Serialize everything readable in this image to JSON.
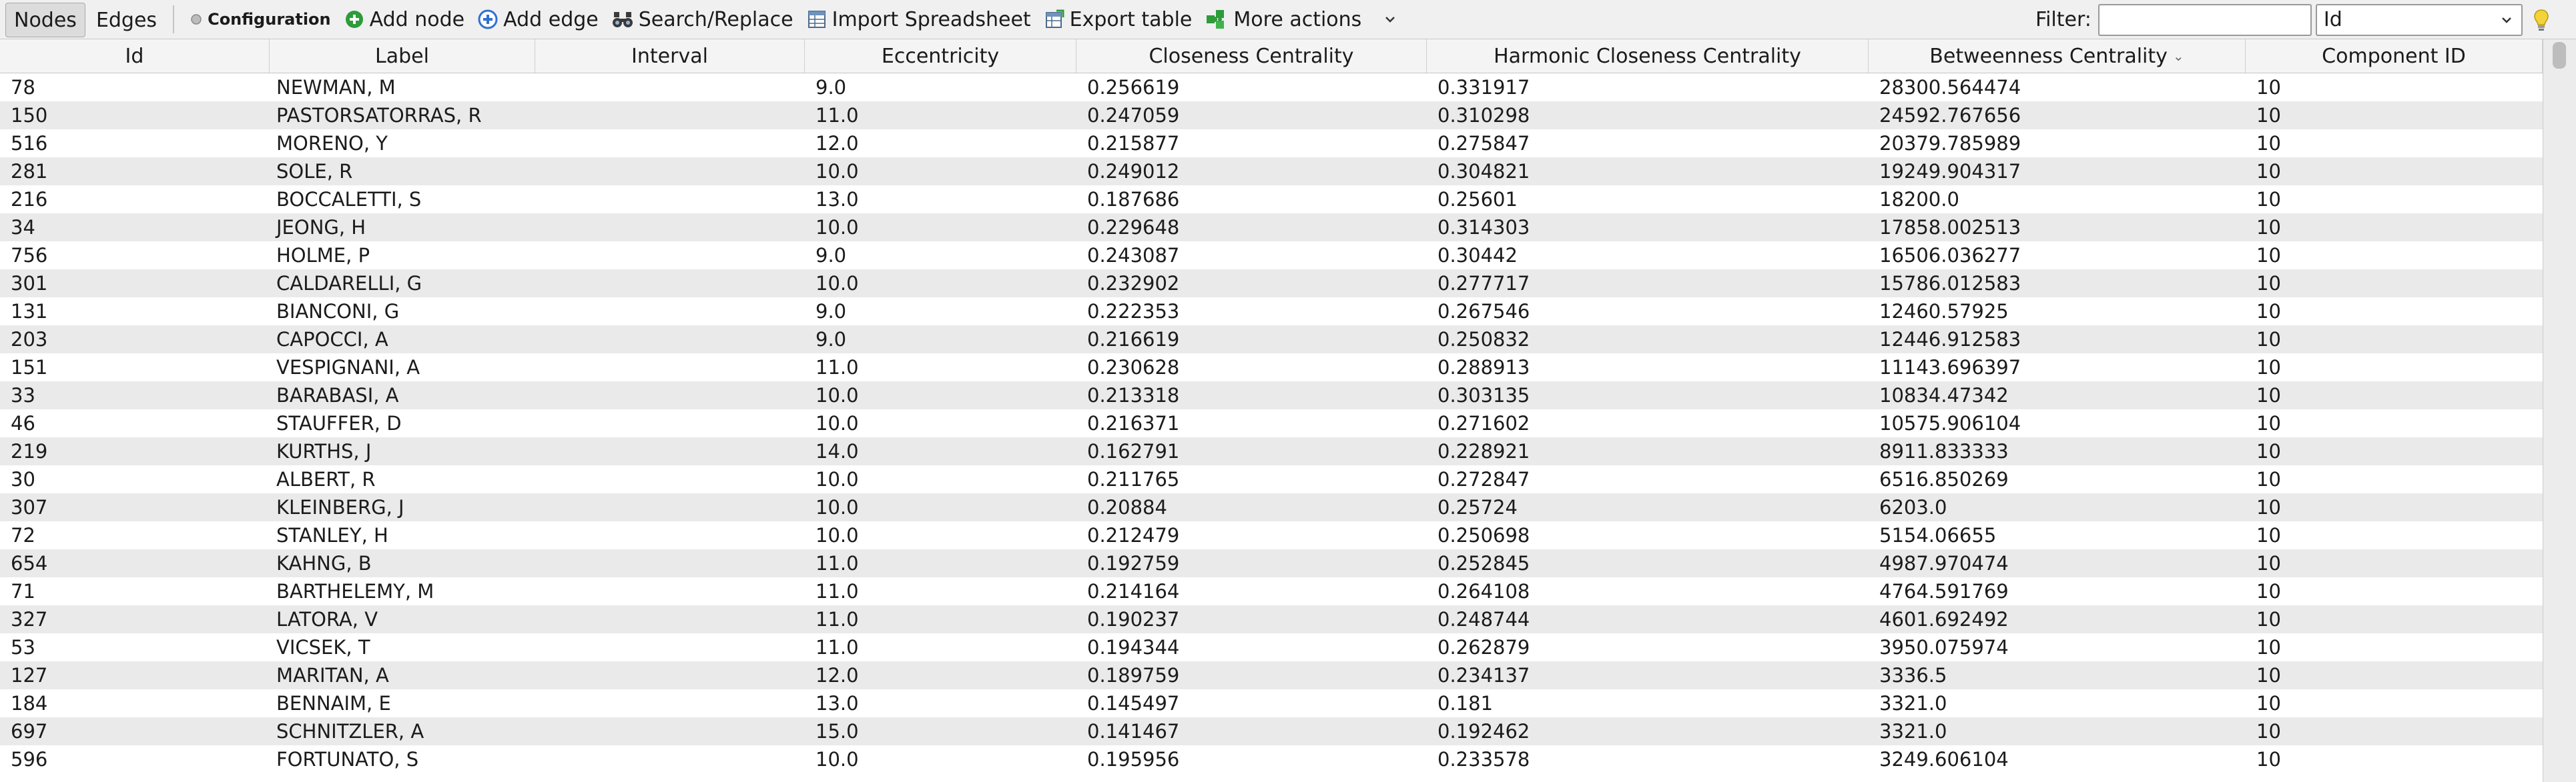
{
  "toolbar": {
    "tabs": [
      {
        "label": "Nodes",
        "active": true
      },
      {
        "label": "Edges",
        "active": false
      }
    ],
    "configuration_label": "Configuration",
    "add_node_label": "Add node",
    "add_edge_label": "Add edge",
    "search_replace_label": "Search/Replace",
    "import_spreadsheet_label": "Import Spreadsheet",
    "export_table_label": "Export table",
    "more_actions_label": "More actions",
    "filter_label": "Filter:",
    "filter_value": "",
    "filter_column": "Id"
  },
  "colors": {
    "accent_green": "#2e9b3a",
    "accent_blue": "#2f6fd6",
    "row_alt": "#eaeaea"
  },
  "icons": {
    "configuration": "dot-icon",
    "add_node": "plus-circle-green-icon",
    "add_edge": "plus-circle-blue-icon",
    "search_replace": "binoculars-icon",
    "import_spreadsheet": "spreadsheet-icon",
    "export_table": "export-table-icon",
    "more_actions": "puzzle-icon",
    "help": "lightbulb-icon"
  },
  "table": {
    "columns": [
      "Id",
      "Label",
      "Interval",
      "Eccentricity",
      "Closeness Centrality",
      "Harmonic Closeness Centrality",
      "Betweenness Centrality",
      "Component ID"
    ],
    "sorted_column": "Betweenness Centrality",
    "sort_direction": "descending",
    "rows": [
      [
        "78",
        "NEWMAN, M",
        "",
        "9.0",
        "0.256619",
        "0.331917",
        "28300.564474",
        "10"
      ],
      [
        "150",
        "PASTORSATORRAS, R",
        "",
        "11.0",
        "0.247059",
        "0.310298",
        "24592.767656",
        "10"
      ],
      [
        "516",
        "MORENO, Y",
        "",
        "12.0",
        "0.215877",
        "0.275847",
        "20379.785989",
        "10"
      ],
      [
        "281",
        "SOLE, R",
        "",
        "10.0",
        "0.249012",
        "0.304821",
        "19249.904317",
        "10"
      ],
      [
        "216",
        "BOCCALETTI, S",
        "",
        "13.0",
        "0.187686",
        "0.25601",
        "18200.0",
        "10"
      ],
      [
        "34",
        "JEONG, H",
        "",
        "10.0",
        "0.229648",
        "0.314303",
        "17858.002513",
        "10"
      ],
      [
        "756",
        "HOLME, P",
        "",
        "9.0",
        "0.243087",
        "0.30442",
        "16506.036277",
        "10"
      ],
      [
        "301",
        "CALDARELLI, G",
        "",
        "10.0",
        "0.232902",
        "0.277717",
        "15786.012583",
        "10"
      ],
      [
        "131",
        "BIANCONI, G",
        "",
        "9.0",
        "0.222353",
        "0.267546",
        "12460.57925",
        "10"
      ],
      [
        "203",
        "CAPOCCI, A",
        "",
        "9.0",
        "0.216619",
        "0.250832",
        "12446.912583",
        "10"
      ],
      [
        "151",
        "VESPIGNANI, A",
        "",
        "11.0",
        "0.230628",
        "0.288913",
        "11143.696397",
        "10"
      ],
      [
        "33",
        "BARABASI, A",
        "",
        "10.0",
        "0.213318",
        "0.303135",
        "10834.47342",
        "10"
      ],
      [
        "46",
        "STAUFFER, D",
        "",
        "10.0",
        "0.216371",
        "0.271602",
        "10575.906104",
        "10"
      ],
      [
        "219",
        "KURTHS, J",
        "",
        "14.0",
        "0.162791",
        "0.228921",
        "8911.833333",
        "10"
      ],
      [
        "30",
        "ALBERT, R",
        "",
        "10.0",
        "0.211765",
        "0.272847",
        "6516.850269",
        "10"
      ],
      [
        "307",
        "KLEINBERG, J",
        "",
        "10.0",
        "0.20884",
        "0.25724",
        "6203.0",
        "10"
      ],
      [
        "72",
        "STANLEY, H",
        "",
        "10.0",
        "0.212479",
        "0.250698",
        "5154.06655",
        "10"
      ],
      [
        "654",
        "KAHNG, B",
        "",
        "11.0",
        "0.192759",
        "0.252845",
        "4987.970474",
        "10"
      ],
      [
        "71",
        "BARTHELEMY, M",
        "",
        "11.0",
        "0.214164",
        "0.264108",
        "4764.591769",
        "10"
      ],
      [
        "327",
        "LATORA, V",
        "",
        "11.0",
        "0.190237",
        "0.248744",
        "4601.692492",
        "10"
      ],
      [
        "53",
        "VICSEK, T",
        "",
        "11.0",
        "0.194344",
        "0.262879",
        "3950.075974",
        "10"
      ],
      [
        "127",
        "MARITAN, A",
        "",
        "12.0",
        "0.189759",
        "0.234137",
        "3336.5",
        "10"
      ],
      [
        "184",
        "BENNAIM, E",
        "",
        "13.0",
        "0.145497",
        "0.181",
        "3321.0",
        "10"
      ],
      [
        "697",
        "SCHNITZLER, A",
        "",
        "15.0",
        "0.141467",
        "0.192462",
        "3321.0",
        "10"
      ],
      [
        "596",
        "FORTUNATO, S",
        "",
        "10.0",
        "0.195956",
        "0.233578",
        "3249.606104",
        "10"
      ]
    ]
  }
}
